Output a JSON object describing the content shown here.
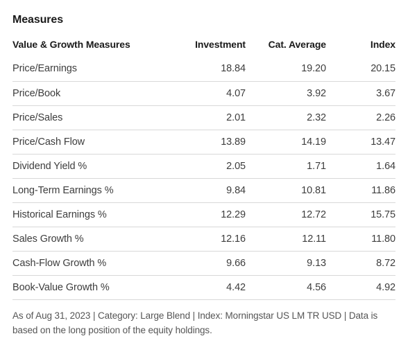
{
  "title": "Measures",
  "table": {
    "headers": [
      "Value & Growth Measures",
      "Investment",
      "Cat. Average",
      "Index"
    ],
    "rows": [
      {
        "label": "Price/Earnings",
        "investment": "18.84",
        "cat_average": "19.20",
        "index": "20.15"
      },
      {
        "label": "Price/Book",
        "investment": "4.07",
        "cat_average": "3.92",
        "index": "3.67"
      },
      {
        "label": "Price/Sales",
        "investment": "2.01",
        "cat_average": "2.32",
        "index": "2.26"
      },
      {
        "label": "Price/Cash Flow",
        "investment": "13.89",
        "cat_average": "14.19",
        "index": "13.47"
      },
      {
        "label": "Dividend Yield %",
        "investment": "2.05",
        "cat_average": "1.71",
        "index": "1.64"
      },
      {
        "label": "Long-Term Earnings %",
        "investment": "9.84",
        "cat_average": "10.81",
        "index": "11.86"
      },
      {
        "label": "Historical Earnings %",
        "investment": "12.29",
        "cat_average": "12.72",
        "index": "15.75"
      },
      {
        "label": "Sales Growth %",
        "investment": "12.16",
        "cat_average": "12.11",
        "index": "11.80"
      },
      {
        "label": "Cash-Flow Growth %",
        "investment": "9.66",
        "cat_average": "9.13",
        "index": "8.72"
      },
      {
        "label": "Book-Value Growth %",
        "investment": "4.42",
        "cat_average": "4.56",
        "index": "4.92"
      }
    ]
  },
  "footnote": "As of Aug 31, 2023 | Category: Large Blend | Index: Morningstar US LM TR USD | Data is based on the long position of the equity holdings.",
  "colors": {
    "heading": "#1a1a1a",
    "body_text": "#3d3d3d",
    "muted_text": "#555555",
    "divider": "#d8d8d8",
    "bg": "#ffffff"
  }
}
